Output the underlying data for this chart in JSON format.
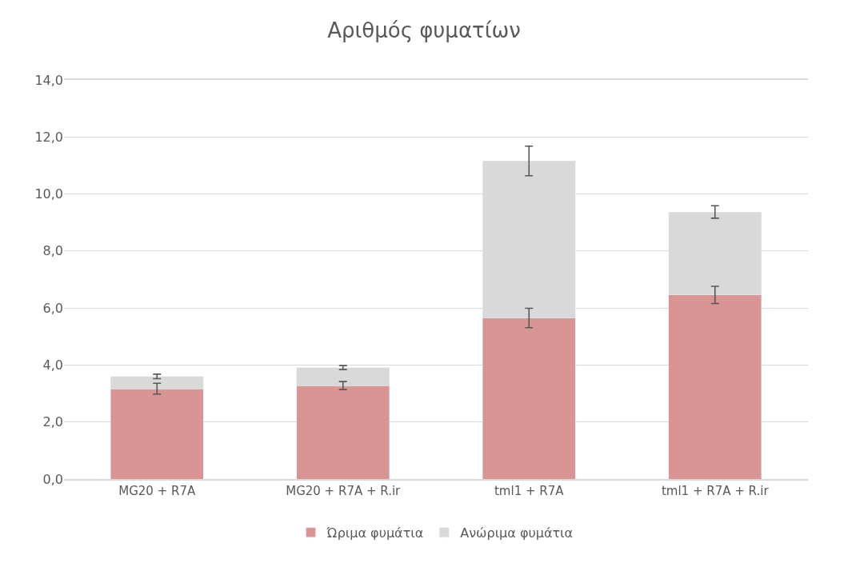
{
  "chart_data": {
    "type": "bar",
    "title": "Αριθμός φυματίων",
    "categories": [
      "MG20 + R7A",
      "MG20 + R7A + R.ir",
      "tml1 + R7A",
      "tml1 + R7A + R.ir"
    ],
    "stacked": true,
    "series": [
      {
        "name": "Ώριμα φυμάτια",
        "color": "#d99594",
        "values": [
          3.17,
          3.28,
          5.65,
          6.46
        ],
        "errors": [
          0.19,
          0.14,
          0.34,
          0.3
        ]
      },
      {
        "name": "Ανώριμα φυμάτια",
        "color": "#d9d9d9",
        "values": [
          0.43,
          0.63,
          5.51,
          2.91
        ],
        "errors": [
          0.08,
          0.07,
          0.52,
          0.22
        ]
      }
    ],
    "ylim": [
      0,
      14
    ],
    "yticks": [
      {
        "value": 0,
        "label": "0,0"
      },
      {
        "value": 2,
        "label": "2,0"
      },
      {
        "value": 4,
        "label": "4,0"
      },
      {
        "value": 6,
        "label": "6,0"
      },
      {
        "value": 8,
        "label": "8,0"
      },
      {
        "value": 10,
        "label": "10,0"
      },
      {
        "value": 12,
        "label": "12,0"
      },
      {
        "value": 14,
        "label": "14,0"
      }
    ],
    "grid": "y",
    "legend": "bottom"
  }
}
